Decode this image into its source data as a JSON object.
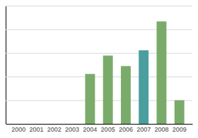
{
  "chart_data": {
    "type": "bar",
    "categories": [
      "2000",
      "2001",
      "2002",
      "2003",
      "2004",
      "2005",
      "2006",
      "2007",
      "2008",
      "2009"
    ],
    "values": [
      0,
      0,
      0,
      0,
      38,
      52,
      44,
      56,
      78,
      18
    ],
    "colors": [
      "#7aab6a",
      "#7aab6a",
      "#7aab6a",
      "#7aab6a",
      "#7aab6a",
      "#7aab6a",
      "#7aab6a",
      "#4a9e9e",
      "#7aab6a",
      "#7aab6a"
    ],
    "ylim": [
      0,
      90
    ],
    "yticks": [
      0,
      18,
      36,
      54,
      72,
      90
    ],
    "grid": true,
    "tick_labels": "x"
  }
}
